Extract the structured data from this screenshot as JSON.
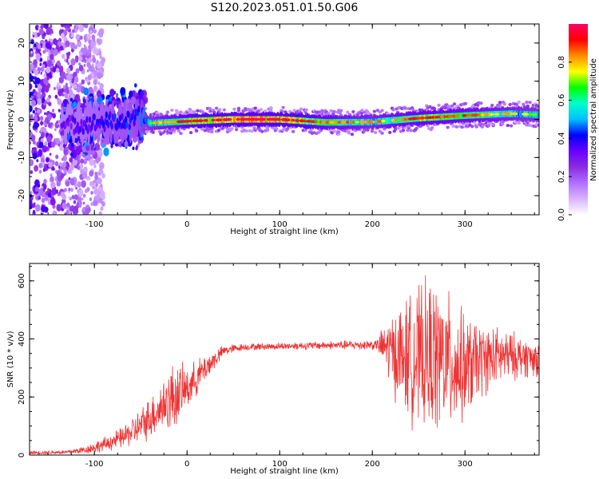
{
  "title": "S120.2023.051.01.50.G06",
  "chart_data": [
    {
      "type": "heatmap",
      "xlabel": "Height of straight line (km)",
      "ylabel": "Frequency (Hz)",
      "xlim": [
        -170,
        380
      ],
      "ylim": [
        -25,
        25
      ],
      "x_ticks": [
        -100,
        0,
        100,
        200,
        300
      ],
      "y_ticks": [
        -20,
        -10,
        0,
        10,
        20
      ],
      "colorbar": {
        "label": "Normalized spectral amplitude",
        "range": [
          0.0,
          1.0
        ],
        "ticks": [
          0.0,
          0.2,
          0.4,
          0.6,
          0.8
        ],
        "colormap": [
          "#ffffff",
          "#d9b3ff",
          "#b070ff",
          "#8a2be2",
          "#6a00ff",
          "#0000ff",
          "#00bfff",
          "#00ffcc",
          "#00ff00",
          "#ffff00",
          "#ff8c00",
          "#ff0000",
          "#ff0066"
        ]
      },
      "ridge": {
        "x": [
          -130,
          -100,
          -80,
          -60,
          -50,
          -40,
          0,
          50,
          100,
          150,
          200,
          250,
          300,
          350,
          380
        ],
        "frequency": [
          -1.5,
          -1.0,
          -0.5,
          -0.5,
          1.0,
          -1.0,
          -0.5,
          0.0,
          0.0,
          -0.8,
          -0.7,
          0.3,
          1.0,
          1.5,
          1.2
        ],
        "peak_amplitude": [
          0.35,
          0.4,
          0.45,
          0.45,
          0.5,
          0.55,
          0.75,
          0.9,
          0.9,
          0.7,
          0.6,
          0.75,
          0.7,
          0.6,
          0.55
        ]
      }
    },
    {
      "type": "line",
      "xlabel": "Height of straight line (km)",
      "ylabel": "SNR (10 * v/v)",
      "xlim": [
        -170,
        380
      ],
      "ylim": [
        0,
        660
      ],
      "x_ticks": [
        -100,
        0,
        100,
        200,
        300
      ],
      "y_ticks": [
        0,
        200,
        400,
        600
      ],
      "series": [
        {
          "color": "#ee3333",
          "envelope": {
            "x": [
              -170,
              -130,
              -110,
              -90,
              -70,
              -50,
              -30,
              -15,
              0,
              20,
              40,
              60,
              100,
              150,
              205,
              215,
              230,
              250,
              265,
              280,
              300,
              320,
              340,
              360,
              380
            ],
            "mean": [
              8,
              10,
              18,
              35,
              60,
              100,
              160,
              200,
              230,
              300,
              360,
              372,
              375,
              378,
              380,
              370,
              340,
              330,
              340,
              320,
              300,
              330,
              340,
              340,
              330
            ],
            "noise": [
              5,
              6,
              12,
              20,
              30,
              50,
              70,
              100,
              60,
              40,
              15,
              10,
              10,
              12,
              15,
              80,
              150,
              200,
              220,
              200,
              150,
              100,
              80,
              60,
              50
            ]
          }
        }
      ]
    }
  ]
}
